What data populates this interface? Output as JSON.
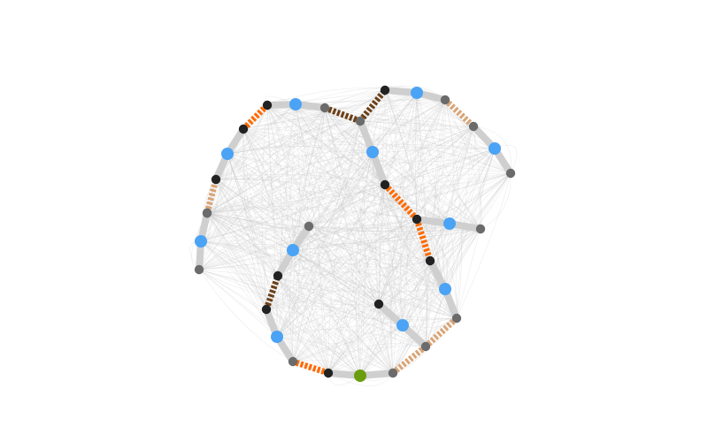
{
  "diagram": {
    "type": "network-graph",
    "colors": {
      "background": "#ffffff",
      "web": "#c8c8c8",
      "trunk": "#cfcfcf",
      "node_dark": "#222222",
      "node_gray": "#6b6b6b",
      "node_blue": "#4aa3f5",
      "node_green": "#6a9e0e",
      "seg_orange": "#ff6a00",
      "seg_brown": "#6b3f18",
      "seg_tan": "#d9a577"
    },
    "nodes": [
      {
        "id": "n1",
        "type": "gray"
      },
      {
        "id": "n2",
        "type": "dark"
      },
      {
        "id": "n3",
        "type": "blue"
      },
      {
        "id": "n4",
        "type": "dark"
      },
      {
        "id": "n5",
        "type": "gray"
      },
      {
        "id": "n6",
        "type": "blue"
      },
      {
        "id": "n7",
        "type": "dark"
      },
      {
        "id": "n8",
        "type": "dark"
      },
      {
        "id": "n9",
        "type": "blue"
      },
      {
        "id": "n10",
        "type": "gray"
      },
      {
        "id": "n11",
        "type": "gray"
      },
      {
        "id": "n12",
        "type": "dark"
      },
      {
        "id": "n13",
        "type": "blue"
      },
      {
        "id": "n14",
        "type": "gray"
      },
      {
        "id": "n15",
        "type": "blue"
      },
      {
        "id": "n16",
        "type": "gray"
      },
      {
        "id": "n17",
        "type": "blue"
      },
      {
        "id": "n18",
        "type": "dark"
      },
      {
        "id": "n19",
        "type": "dark"
      },
      {
        "id": "n20",
        "type": "dark"
      },
      {
        "id": "n21",
        "type": "blue"
      },
      {
        "id": "n22",
        "type": "gray"
      },
      {
        "id": "n23",
        "type": "dark"
      },
      {
        "id": "n24",
        "type": "blue"
      },
      {
        "id": "n25",
        "type": "gray"
      },
      {
        "id": "n26",
        "type": "gray"
      },
      {
        "id": "n27",
        "type": "green"
      },
      {
        "id": "n28",
        "type": "dark"
      },
      {
        "id": "n29",
        "type": "gray"
      },
      {
        "id": "n30",
        "type": "blue"
      },
      {
        "id": "n31",
        "type": "dark"
      },
      {
        "id": "n32",
        "type": "dark"
      },
      {
        "id": "n33",
        "type": "blue"
      },
      {
        "id": "n34",
        "type": "gray"
      }
    ],
    "edges": [
      {
        "from": "n1",
        "to": "n2",
        "style": "trunk"
      },
      {
        "from": "n2",
        "to": "n3",
        "style": "trunk"
      },
      {
        "from": "n3",
        "to": "n4",
        "style": "trunk"
      },
      {
        "from": "n4",
        "to": "n5",
        "style": "tan"
      },
      {
        "from": "n4",
        "to": "n6",
        "style": "trunk"
      },
      {
        "from": "n6",
        "to": "n7",
        "style": "trunk"
      },
      {
        "from": "n7",
        "to": "n8",
        "style": "orange"
      },
      {
        "from": "n8",
        "to": "n9",
        "style": "trunk"
      },
      {
        "from": "n9",
        "to": "n10",
        "style": "trunk"
      },
      {
        "from": "n10",
        "to": "n11",
        "style": "brown"
      },
      {
        "from": "n11",
        "to": "n12",
        "style": "brown"
      },
      {
        "from": "n12",
        "to": "n13",
        "style": "trunk"
      },
      {
        "from": "n13",
        "to": "n14",
        "style": "trunk"
      },
      {
        "from": "n14",
        "to": "n15",
        "style": "trunk"
      },
      {
        "from": "n15",
        "to": "n16",
        "style": "trunk"
      },
      {
        "from": "n11",
        "to": "n17",
        "style": "trunk"
      },
      {
        "from": "n17",
        "to": "n18",
        "style": "trunk"
      },
      {
        "from": "n18",
        "to": "n19",
        "style": "orange"
      },
      {
        "from": "n19",
        "to": "n20",
        "style": "orange"
      },
      {
        "from": "n19",
        "to": "n21",
        "style": "trunk"
      },
      {
        "from": "n21",
        "to": "n22",
        "style": "trunk"
      },
      {
        "from": "n20",
        "to": "n24",
        "style": "trunk"
      },
      {
        "from": "n24",
        "to": "n25",
        "style": "trunk"
      },
      {
        "from": "n25",
        "to": "n26",
        "style": "tan"
      },
      {
        "from": "n23",
        "to": "n30",
        "style": "trunk"
      },
      {
        "from": "n30",
        "to": "n26",
        "style": "trunk"
      },
      {
        "from": "n26",
        "to": "n29",
        "style": "tan"
      },
      {
        "from": "n29",
        "to": "n27",
        "style": "trunk"
      },
      {
        "from": "n27",
        "to": "n28",
        "style": "trunk"
      },
      {
        "from": "n28",
        "to": "n34",
        "style": "orange"
      },
      {
        "from": "n34",
        "to": "n33",
        "style": "trunk"
      },
      {
        "from": "n33",
        "to": "n32",
        "style": "trunk"
      },
      {
        "from": "n32",
        "to": "n31",
        "style": "brown"
      },
      {
        "from": "n31",
        "to": "n30b",
        "style": "skip"
      }
    ]
  }
}
